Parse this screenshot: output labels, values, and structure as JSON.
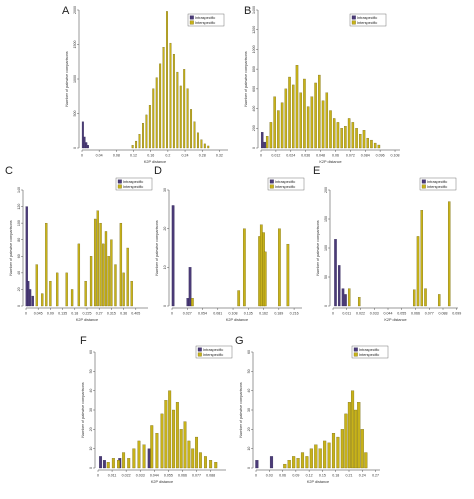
{
  "colors": {
    "intraspecific": "#4b3b78",
    "interspecific": "#c7b21a",
    "intra_stroke": "#2a2050",
    "inter_stroke": "#6b5e0c"
  },
  "chart_data": [
    {
      "panel": "A",
      "type": "bar",
      "xlabel": "K2P distance",
      "ylabel": "Number of pairwise comparisons",
      "xlim": [
        0,
        0.34
      ],
      "ylim": [
        0,
        2000
      ],
      "xticks": [
        "0",
        "0.04",
        "0.08",
        "0.12",
        "0.16",
        "0.2",
        "0.24",
        "0.28",
        "0.32"
      ],
      "yticks": [
        "0",
        "500",
        "1000",
        "1500",
        "2000"
      ],
      "legend": [
        "Intraspecific",
        "Interspecific"
      ],
      "series": [
        {
          "name": "Intraspecific",
          "x": [
            0.002,
            0.006,
            0.01,
            0.014
          ],
          "values": [
            380,
            160,
            80,
            40
          ]
        },
        {
          "name": "Interspecific",
          "x": [
            0.118,
            0.126,
            0.134,
            0.142,
            0.15,
            0.158,
            0.166,
            0.174,
            0.182,
            0.19,
            0.198,
            0.206,
            0.214,
            0.222,
            0.23,
            0.238,
            0.246,
            0.254,
            0.262,
            0.27,
            0.278,
            0.286,
            0.294
          ],
          "values": [
            40,
            100,
            200,
            360,
            480,
            620,
            860,
            1020,
            1220,
            1460,
            1980,
            1520,
            1360,
            1100,
            900,
            1140,
            860,
            560,
            380,
            220,
            120,
            60,
            30
          ]
        }
      ]
    },
    {
      "panel": "B",
      "type": "bar",
      "xlabel": "K2P distance",
      "ylabel": "Number of pairwise comparisons",
      "xlim": [
        0,
        0.112
      ],
      "ylim": [
        0,
        1400
      ],
      "xticks": [
        "0",
        "0.012",
        "0.024",
        "0.036",
        "0.048",
        "0.06",
        "0.072",
        "0.084",
        "0.096",
        "0.108"
      ],
      "yticks": [
        "0",
        "200",
        "400",
        "600",
        "800",
        "1000",
        "1200",
        "1400"
      ],
      "legend": [
        "Intraspecific",
        "Interspecific"
      ],
      "series": [
        {
          "name": "Intraspecific",
          "x": [
            0.001,
            0.003
          ],
          "values": [
            160,
            60
          ]
        },
        {
          "name": "Interspecific",
          "x": [
            0.005,
            0.008,
            0.011,
            0.014,
            0.017,
            0.02,
            0.023,
            0.026,
            0.029,
            0.032,
            0.035,
            0.038,
            0.041,
            0.044,
            0.047,
            0.05,
            0.053,
            0.056,
            0.059,
            0.062,
            0.065,
            0.068,
            0.071,
            0.074,
            0.077,
            0.08,
            0.083,
            0.086,
            0.089,
            0.092,
            0.095
          ],
          "values": [
            120,
            260,
            520,
            380,
            460,
            600,
            720,
            640,
            840,
            560,
            700,
            420,
            520,
            660,
            740,
            480,
            560,
            380,
            300,
            260,
            200,
            220,
            300,
            260,
            200,
            140,
            180,
            100,
            80,
            50,
            30
          ]
        }
      ]
    },
    {
      "panel": "C",
      "type": "bar",
      "xlabel": "K2P distance",
      "ylabel": "Number of pairwise comparisons",
      "xlim": [
        0,
        0.45
      ],
      "ylim": [
        0,
        140
      ],
      "xticks": [
        "0",
        "0.045",
        "0.09",
        "0.135",
        "0.18",
        "0.225",
        "0.27",
        "0.315",
        "0.36",
        "0.405"
      ],
      "yticks": [
        "0",
        "20",
        "40",
        "60",
        "80",
        "100",
        "120",
        "140"
      ],
      "legend": [
        "Intraspecific",
        "Interspecific"
      ],
      "series": [
        {
          "name": "Intraspecific",
          "x": [
            0.003,
            0.008,
            0.015,
            0.025
          ],
          "values": [
            120,
            30,
            20,
            12
          ]
        },
        {
          "name": "Interspecific",
          "x": [
            0.04,
            0.06,
            0.075,
            0.09,
            0.115,
            0.15,
            0.17,
            0.195,
            0.22,
            0.24,
            0.255,
            0.265,
            0.275,
            0.285,
            0.295,
            0.305,
            0.315,
            0.33,
            0.35,
            0.36,
            0.375,
            0.39
          ],
          "values": [
            50,
            15,
            100,
            30,
            40,
            40,
            20,
            75,
            30,
            60,
            105,
            115,
            100,
            75,
            90,
            60,
            80,
            50,
            100,
            40,
            70,
            30
          ]
        }
      ]
    },
    {
      "panel": "D",
      "type": "bar",
      "xlabel": "K2P distance",
      "ylabel": "Number of pairwise comparisons",
      "xlim": [
        0,
        0.23
      ],
      "ylim": [
        0,
        30
      ],
      "xticks": [
        "0",
        "0.027",
        "0.054",
        "0.081",
        "0.108",
        "0.135",
        "0.162",
        "0.189",
        "0.216"
      ],
      "yticks": [
        "0",
        "10",
        "20",
        "30"
      ],
      "legend": [
        "Intraspecific",
        "Interspecific"
      ],
      "series": [
        {
          "name": "Intraspecific",
          "x": [
            0.002,
            0.028,
            0.032
          ],
          "values": [
            26,
            2,
            10
          ]
        },
        {
          "name": "Interspecific",
          "x": [
            0.036,
            0.118,
            0.128,
            0.155,
            0.158,
            0.162,
            0.165,
            0.19,
            0.205
          ],
          "values": [
            2,
            4,
            20,
            18,
            21,
            19,
            14,
            20,
            16
          ]
        }
      ]
    },
    {
      "panel": "E",
      "type": "bar",
      "xlabel": "K2P distance",
      "ylabel": "Number of pairwise comparisons",
      "xlim": [
        0,
        0.1
      ],
      "ylim": [
        0,
        200
      ],
      "xticks": [
        "0",
        "0.011",
        "0.022",
        "0.033",
        "0.044",
        "0.055",
        "0.066",
        "0.077",
        "0.088",
        "0.099"
      ],
      "yticks": [
        "0",
        "50",
        "100",
        "150",
        "200"
      ],
      "legend": [
        "Intraspecific",
        "Interspecific"
      ],
      "series": [
        {
          "name": "Intraspecific",
          "x": [
            0.002,
            0.005,
            0.008,
            0.01
          ],
          "values": [
            115,
            70,
            30,
            20
          ]
        },
        {
          "name": "Interspecific",
          "x": [
            0.013,
            0.021,
            0.065,
            0.068,
            0.071,
            0.074,
            0.085,
            0.093
          ],
          "values": [
            30,
            15,
            28,
            120,
            165,
            30,
            20,
            180
          ]
        }
      ]
    },
    {
      "panel": "F",
      "type": "bar",
      "xlabel": "K2P distance",
      "ylabel": "Number of pairwise comparisons",
      "xlim": [
        0,
        0.1
      ],
      "ylim": [
        0,
        60
      ],
      "xticks": [
        "0",
        "0.011",
        "0.022",
        "0.033",
        "0.044",
        "0.055",
        "0.066",
        "0.077",
        "0.088"
      ],
      "yticks": [
        "0",
        "10",
        "20",
        "30",
        "40",
        "50",
        "60"
      ],
      "legend": [
        "Intraspecific",
        "Interspecific"
      ],
      "series": [
        {
          "name": "Intraspecific",
          "x": [
            0.002,
            0.005,
            0.017,
            0.04
          ],
          "values": [
            6,
            4,
            5,
            10
          ]
        },
        {
          "name": "Interspecific",
          "x": [
            0.008,
            0.012,
            0.016,
            0.02,
            0.024,
            0.028,
            0.032,
            0.036,
            0.042,
            0.046,
            0.05,
            0.053,
            0.056,
            0.059,
            0.062,
            0.065,
            0.068,
            0.071,
            0.074,
            0.077,
            0.08,
            0.084,
            0.088,
            0.092
          ],
          "values": [
            3,
            5,
            4,
            8,
            5,
            10,
            14,
            12,
            22,
            18,
            28,
            35,
            40,
            30,
            34,
            20,
            24,
            14,
            10,
            16,
            8,
            6,
            4,
            3
          ]
        }
      ]
    },
    {
      "panel": "G",
      "type": "bar",
      "xlabel": "K2P distance",
      "ylabel": "Number of pairwise comparisons",
      "xlim": [
        0,
        0.28
      ],
      "ylim": [
        0,
        60
      ],
      "xticks": [
        "0",
        "0.03",
        "0.06",
        "0.09",
        "0.12",
        "0.15",
        "0.18",
        "0.21",
        "0.24",
        "0.27"
      ],
      "yticks": [
        "0",
        "10",
        "20",
        "30",
        "40",
        "50",
        "60"
      ],
      "legend": [
        "Intraspecific",
        "Interspecific"
      ],
      "series": [
        {
          "name": "Intraspecific",
          "x": [
            0.002,
            0.035
          ],
          "values": [
            4,
            6
          ]
        },
        {
          "name": "Interspecific",
          "x": [
            0.065,
            0.075,
            0.085,
            0.095,
            0.105,
            0.115,
            0.125,
            0.135,
            0.145,
            0.155,
            0.165,
            0.175,
            0.185,
            0.195,
            0.203,
            0.211,
            0.218,
            0.225,
            0.232,
            0.24,
            0.248
          ],
          "values": [
            2,
            4,
            6,
            5,
            8,
            6,
            10,
            12,
            10,
            14,
            13,
            18,
            16,
            20,
            28,
            34,
            40,
            30,
            34,
            20,
            8
          ]
        }
      ]
    }
  ]
}
